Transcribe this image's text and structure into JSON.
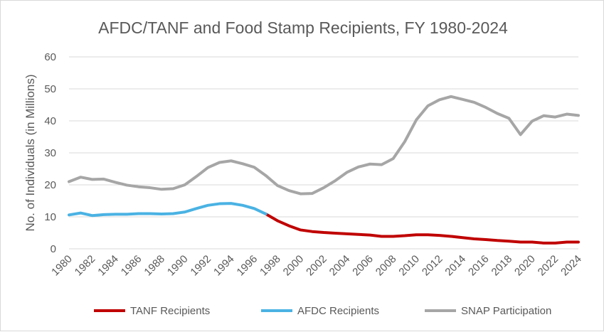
{
  "chart_data": {
    "type": "line",
    "title": "AFDC/TANF and Food Stamp Recipients, FY 1980-2024",
    "xlabel": "",
    "ylabel": "No. of Individuals (in Millions)",
    "ylim": [
      0,
      60
    ],
    "yticks": [
      "0",
      "10",
      "20",
      "30",
      "40",
      "50",
      "60"
    ],
    "xticks": [
      "1980",
      "1982",
      "1984",
      "1986",
      "1988",
      "1990",
      "1992",
      "1994",
      "1996",
      "1998",
      "2000",
      "2002",
      "2004",
      "2006",
      "2008",
      "2010",
      "2012",
      "2014",
      "2016",
      "2018",
      "2020",
      "2022",
      "2024"
    ],
    "grid": true,
    "legend_position": "bottom",
    "series": [
      {
        "name": "TANF Recipients",
        "color": "#c00000",
        "x": [
          1997,
          1998,
          1999,
          2000,
          2001,
          2002,
          2003,
          2004,
          2005,
          2006,
          2007,
          2008,
          2009,
          2010,
          2011,
          2012,
          2013,
          2014,
          2015,
          2016,
          2017,
          2018,
          2019,
          2020,
          2021,
          2022,
          2023,
          2024
        ],
        "values": [
          10.9,
          8.8,
          7.2,
          5.9,
          5.4,
          5.1,
          4.9,
          4.7,
          4.5,
          4.3,
          3.9,
          3.9,
          4.1,
          4.4,
          4.4,
          4.2,
          3.9,
          3.5,
          3.1,
          2.9,
          2.6,
          2.4,
          2.1,
          2.1,
          1.8,
          1.8,
          2.1,
          2.1
        ]
      },
      {
        "name": "AFDC Recipients",
        "color": "#4ab2e3",
        "x": [
          1980,
          1981,
          1982,
          1983,
          1984,
          1985,
          1986,
          1987,
          1988,
          1989,
          1990,
          1991,
          1992,
          1993,
          1994,
          1995,
          1996,
          1997
        ],
        "values": [
          10.6,
          11.2,
          10.4,
          10.7,
          10.8,
          10.8,
          11.0,
          11.0,
          10.9,
          11.0,
          11.5,
          12.6,
          13.6,
          14.1,
          14.2,
          13.6,
          12.6,
          10.9
        ]
      },
      {
        "name": "SNAP Participation",
        "color": "#a6a6a6",
        "x": [
          1980,
          1981,
          1982,
          1983,
          1984,
          1985,
          1986,
          1987,
          1988,
          1989,
          1990,
          1991,
          1992,
          1993,
          1994,
          1995,
          1996,
          1997,
          1998,
          1999,
          2000,
          2001,
          2002,
          2003,
          2004,
          2005,
          2006,
          2007,
          2008,
          2009,
          2010,
          2011,
          2012,
          2013,
          2014,
          2015,
          2016,
          2017,
          2018,
          2019,
          2020,
          2021,
          2022,
          2023,
          2024
        ],
        "values": [
          21.0,
          22.4,
          21.7,
          21.8,
          20.8,
          19.9,
          19.4,
          19.1,
          18.6,
          18.8,
          20.0,
          22.6,
          25.4,
          27.0,
          27.5,
          26.6,
          25.5,
          22.9,
          19.8,
          18.2,
          17.2,
          17.3,
          19.1,
          21.3,
          23.9,
          25.6,
          26.5,
          26.3,
          28.2,
          33.5,
          40.3,
          44.7,
          46.6,
          47.6,
          46.7,
          45.8,
          44.2,
          42.3,
          40.8,
          35.7,
          39.9,
          41.6,
          41.2,
          42.1,
          41.7
        ]
      }
    ]
  }
}
